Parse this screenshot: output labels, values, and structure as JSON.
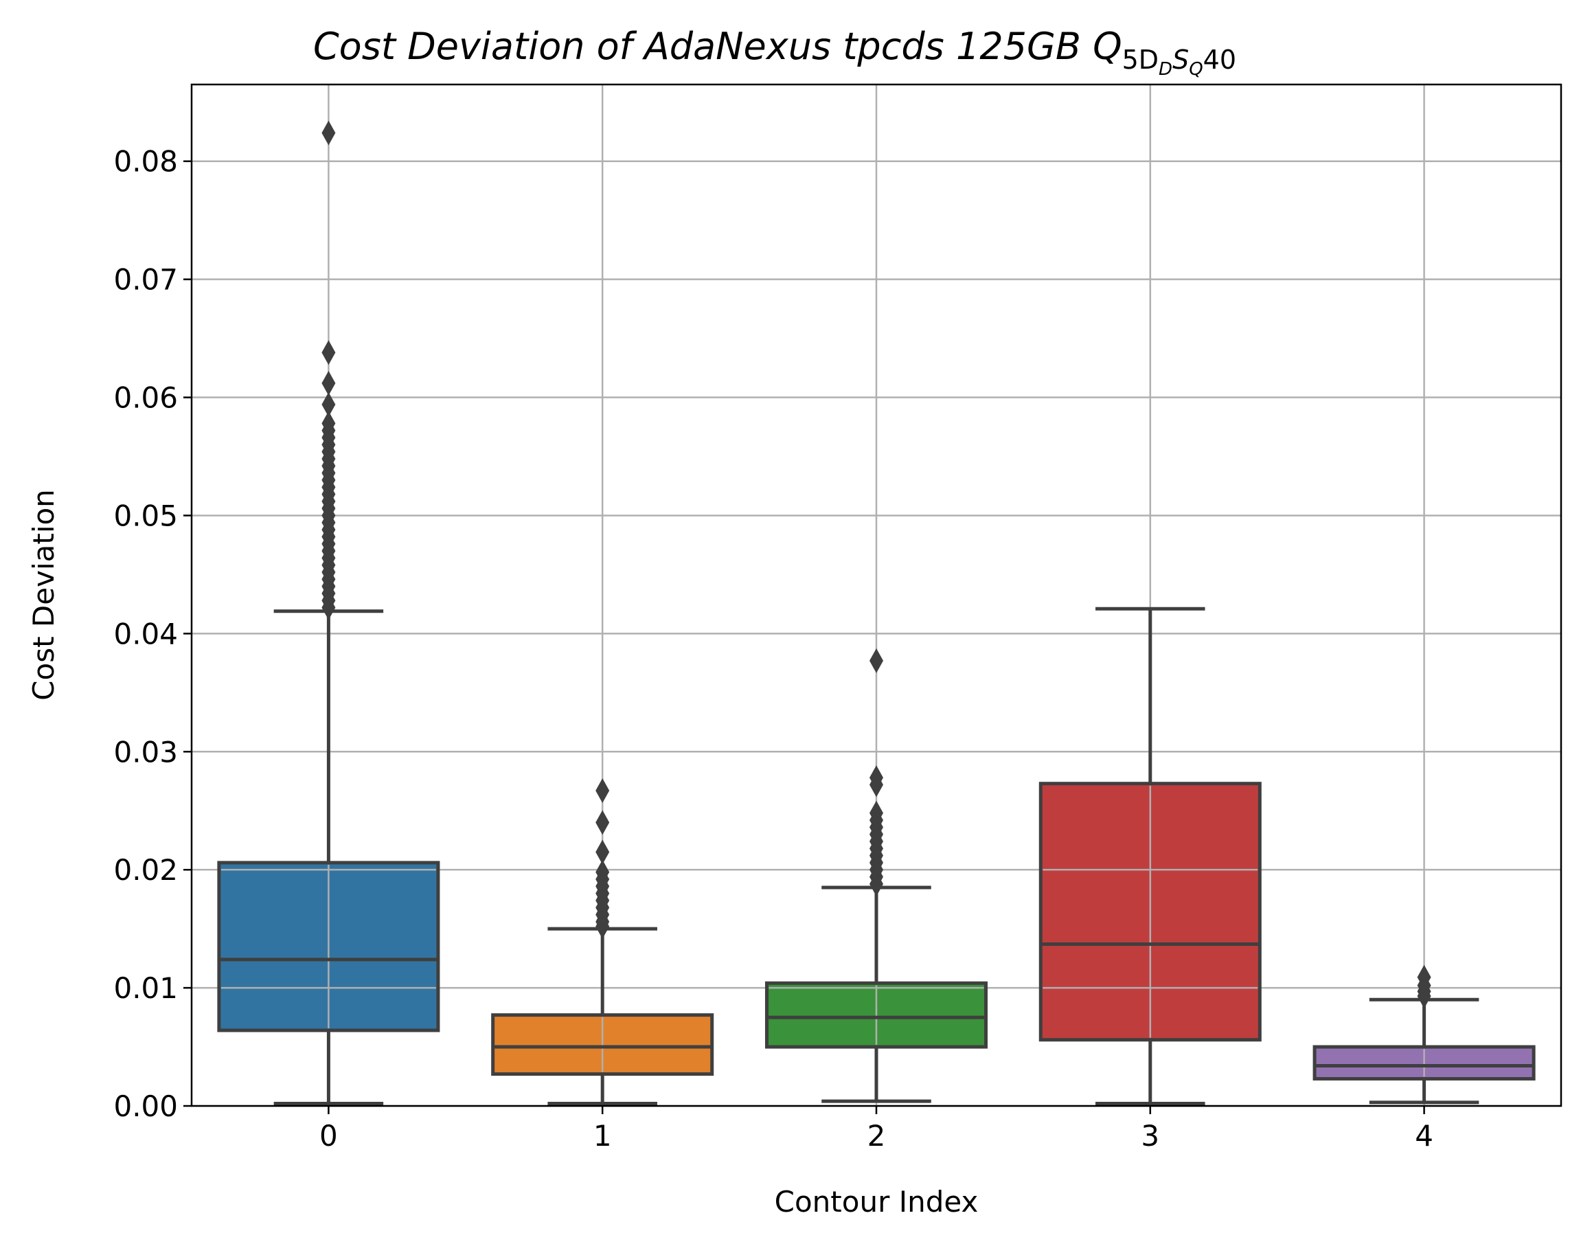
{
  "chart_data": {
    "type": "box",
    "title": {
      "main": "Cost Deviation of AdaNexus tpcds  125GB  ",
      "q": "Q",
      "sub1": "5D",
      "sub2": "D",
      "sub3": "S",
      "sub4": "Q",
      "tail": "40"
    },
    "xlabel": "Contour Index",
    "ylabel": "Cost Deviation",
    "ylim": [
      0,
      0.0865
    ],
    "yticks": [
      "0.00",
      "0.01",
      "0.02",
      "0.03",
      "0.04",
      "0.05",
      "0.06",
      "0.07",
      "0.08"
    ],
    "grid": true,
    "categories": [
      "0",
      "1",
      "2",
      "3",
      "4"
    ],
    "colors": [
      "#3274a1",
      "#e1812c",
      "#3a923a",
      "#c03d3e",
      "#9372b2"
    ],
    "edge_color": "#3f3f3f",
    "boxes": [
      {
        "category": "0",
        "whislo": 0.0002,
        "q1": 0.0064,
        "med": 0.0124,
        "q3": 0.0206,
        "whishi": 0.0419,
        "fliers": [
          0.0824,
          0.0638,
          0.0612,
          0.0594,
          0.0578,
          0.0572,
          0.0566,
          0.056,
          0.0554,
          0.0548,
          0.0542,
          0.0536,
          0.053,
          0.0524,
          0.0518,
          0.0512,
          0.0506,
          0.05,
          0.0494,
          0.0488,
          0.0482,
          0.0476,
          0.047,
          0.0464,
          0.0458,
          0.0452,
          0.0446,
          0.044,
          0.0434,
          0.0428,
          0.0422
        ]
      },
      {
        "category": "1",
        "whislo": 0.0002,
        "q1": 0.0027,
        "med": 0.005,
        "q3": 0.0077,
        "whishi": 0.015,
        "fliers": [
          0.0267,
          0.024,
          0.0215,
          0.0198,
          0.0192,
          0.0186,
          0.018,
          0.0174,
          0.0168,
          0.0162,
          0.0156,
          0.0152
        ]
      },
      {
        "category": "2",
        "whislo": 0.0004,
        "q1": 0.005,
        "med": 0.0075,
        "q3": 0.0104,
        "whishi": 0.0185,
        "fliers": [
          0.0377,
          0.0278,
          0.0272,
          0.0248,
          0.0242,
          0.0236,
          0.023,
          0.0224,
          0.0218,
          0.0212,
          0.0206,
          0.02,
          0.0194,
          0.0188
        ]
      },
      {
        "category": "3",
        "whislo": 0.0002,
        "q1": 0.0056,
        "med": 0.0137,
        "q3": 0.0273,
        "whishi": 0.0421,
        "fliers": []
      },
      {
        "category": "4",
        "whislo": 0.0003,
        "q1": 0.0023,
        "med": 0.0034,
        "q3": 0.005,
        "whishi": 0.009,
        "fliers": [
          0.0109,
          0.0102,
          0.0097,
          0.0093
        ]
      }
    ]
  }
}
